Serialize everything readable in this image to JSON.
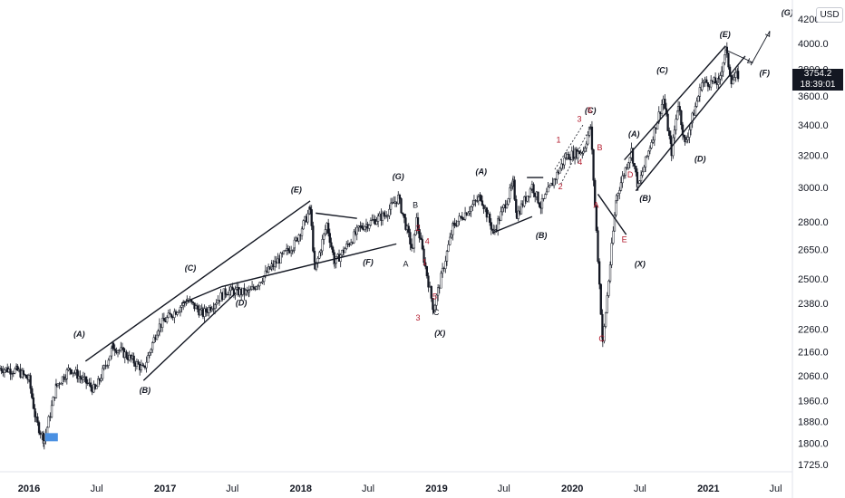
{
  "currency_label": "USD",
  "last_price_tag": {
    "price": "3754.2",
    "countdown": "18:39:01"
  },
  "chart_data": {
    "type": "candlestick",
    "scale": "log",
    "x_ticks": [
      "2016",
      "Jul",
      "2017",
      "Jul",
      "2018",
      "Jul",
      "2019",
      "Jul",
      "2020",
      "Jul",
      "2021",
      "Jul"
    ],
    "y_ticks": [
      "1725.0",
      "1800.0",
      "1880.0",
      "1960.0",
      "2060.0",
      "2160.0",
      "2260.0",
      "2380.0",
      "2500.0",
      "2650.0",
      "2800.0",
      "3000.0",
      "3200.0",
      "3400.0",
      "3600.0",
      "3800.0",
      "4000.0",
      "4200.0"
    ],
    "ylim": [
      1725,
      4200
    ],
    "xlim": [
      "2015-10-15",
      "2021-08-15"
    ],
    "grid": false,
    "price_path": [
      [
        "2015-10-15",
        2090
      ],
      [
        "2015-12-01",
        2080
      ],
      [
        "2016-01-01",
        2043
      ],
      [
        "2016-01-20",
        1880
      ],
      [
        "2016-02-11",
        1810
      ],
      [
        "2016-03-15",
        2020
      ],
      [
        "2016-04-20",
        2090
      ],
      [
        "2016-06-27",
        2000
      ],
      [
        "2016-08-15",
        2185
      ],
      [
        "2016-09-15",
        2150
      ],
      [
        "2016-11-04",
        2085
      ],
      [
        "2016-12-13",
        2270
      ],
      [
        "2017-03-01",
        2395
      ],
      [
        "2017-04-13",
        2330
      ],
      [
        "2017-06-15",
        2440
      ],
      [
        "2017-08-15",
        2430
      ],
      [
        "2017-10-15",
        2560
      ],
      [
        "2017-12-15",
        2680
      ],
      [
        "2018-01-26",
        2870
      ],
      [
        "2018-02-08",
        2540
      ],
      [
        "2018-03-12",
        2790
      ],
      [
        "2018-04-02",
        2580
      ],
      [
        "2018-06-10",
        2770
      ],
      [
        "2018-08-15",
        2840
      ],
      [
        "2018-09-20",
        2940
      ],
      [
        "2018-10-29",
        2640
      ],
      [
        "2018-11-08",
        2810
      ],
      [
        "2018-12-24",
        2350
      ],
      [
        "2019-02-15",
        2780
      ],
      [
        "2019-04-30",
        2945
      ],
      [
        "2019-06-03",
        2740
      ],
      [
        "2019-07-26",
        3020
      ],
      [
        "2019-08-05",
        2840
      ],
      [
        "2019-09-15",
        3010
      ],
      [
        "2019-10-08",
        2890
      ],
      [
        "2019-12-15",
        3190
      ],
      [
        "2020-01-31",
        3230
      ],
      [
        "2020-02-19",
        3390
      ],
      [
        "2020-03-23",
        2195
      ],
      [
        "2020-04-29",
        2950
      ],
      [
        "2020-06-08",
        3230
      ],
      [
        "2020-06-26",
        3000
      ],
      [
        "2020-09-02",
        3580
      ],
      [
        "2020-09-24",
        3220
      ],
      [
        "2020-10-12",
        3550
      ],
      [
        "2020-10-30",
        3270
      ],
      [
        "2020-12-15",
        3700
      ],
      [
        "2021-01-29",
        3700
      ],
      [
        "2021-02-16",
        3950
      ],
      [
        "2021-03-04",
        3720
      ],
      [
        "2021-03-22",
        3754.2
      ]
    ],
    "trendlines": [
      {
        "from": [
          "2016-06-01",
          2120
        ],
        "to": [
          "2018-01-26",
          2920
        ]
      },
      {
        "from": [
          "2016-11-04",
          2040
        ],
        "to": [
          "2017-07-10",
          2430
        ]
      },
      {
        "from": [
          "2017-06-01",
          2460
        ],
        "to": [
          "2018-09-15",
          2680
        ]
      },
      {
        "from": [
          "2017-02-15",
          2380
        ],
        "to": [
          "2017-06-01",
          2460
        ]
      },
      {
        "from": [
          "2020-05-20",
          3170
        ],
        "to": [
          "2021-02-16",
          3980
        ]
      },
      {
        "from": [
          "2020-06-20",
          2980
        ],
        "to": [
          "2021-04-10",
          3900
        ]
      },
      {
        "from": [
          "2019-06-01",
          2740
        ],
        "to": [
          "2019-09-15",
          2830
        ]
      },
      {
        "from": [
          "2019-09-01",
          3060
        ],
        "to": [
          "2019-10-15",
          3060
        ]
      },
      {
        "from": [
          "2018-02-10",
          2850
        ],
        "to": [
          "2018-06-01",
          2820
        ]
      },
      {
        "from": [
          "2020-03-10",
          2960
        ],
        "to": [
          "2020-05-25",
          2730
        ]
      }
    ],
    "projection_arrows": [
      {
        "from": [
          "2021-02-16",
          3950
        ],
        "to": [
          "2021-05-01",
          3850
        ]
      },
      {
        "from": [
          "2021-04-25",
          3830
        ],
        "to": [
          "2021-06-15",
          4100
        ]
      }
    ],
    "wave_labels": [
      {
        "text": "(A)",
        "date": "2016-05-15",
        "price": 2225
      },
      {
        "text": "(B)",
        "date": "2016-11-08",
        "price": 1990
      },
      {
        "text": "(C)",
        "date": "2017-03-10",
        "price": 2540
      },
      {
        "text": "(D)",
        "date": "2017-07-25",
        "price": 2370
      },
      {
        "text": "(E)",
        "date": "2017-12-20",
        "price": 2970
      },
      {
        "text": "(F)",
        "date": "2018-07-01",
        "price": 2570
      },
      {
        "text": "(G)",
        "date": "2018-09-20",
        "price": 3050
      },
      {
        "text": "(X)",
        "date": "2019-01-10",
        "price": 2230
      },
      {
        "text": "(A)",
        "date": "2019-05-01",
        "price": 3080
      },
      {
        "text": "(B)",
        "date": "2019-10-10",
        "price": 2710
      },
      {
        "text": "(C)",
        "date": "2020-02-19",
        "price": 3480
      },
      {
        "text": "(X)",
        "date": "2020-07-01",
        "price": 2560
      },
      {
        "text": "(A)",
        "date": "2020-06-15",
        "price": 3320
      },
      {
        "text": "(B)",
        "date": "2020-07-15",
        "price": 2920
      },
      {
        "text": "(C)",
        "date": "2020-08-30",
        "price": 3770
      },
      {
        "text": "(D)",
        "date": "2020-12-10",
        "price": 3160
      },
      {
        "text": "(E)",
        "date": "2021-02-15",
        "price": 4050
      },
      {
        "text": "(F)",
        "date": "2021-06-01",
        "price": 3750
      },
      {
        "text": "(G)",
        "date": "2021-08-01",
        "price": 4230
      }
    ],
    "sub_labels": [
      {
        "text": "A",
        "date": "2018-10-10",
        "price": 2560,
        "color": "black"
      },
      {
        "text": "B",
        "date": "2018-11-05",
        "price": 2880,
        "color": "black"
      },
      {
        "text": "C",
        "date": "2018-12-31",
        "price": 2325,
        "color": "black"
      },
      {
        "text": "1",
        "date": "2018-11-30",
        "price": 2570,
        "color": "red"
      },
      {
        "text": "2",
        "date": "2018-11-12",
        "price": 2750,
        "color": "red"
      },
      {
        "text": "3",
        "date": "2018-11-12",
        "price": 2300,
        "color": "red"
      },
      {
        "text": "4",
        "date": "2018-12-07",
        "price": 2680,
        "color": "red"
      },
      {
        "text": "5",
        "date": "2018-12-27",
        "price": 2400,
        "color": "red"
      },
      {
        "text": "1",
        "date": "2019-11-25",
        "price": 3280,
        "color": "red"
      },
      {
        "text": "2",
        "date": "2019-11-30",
        "price": 2990,
        "color": "red"
      },
      {
        "text": "3",
        "date": "2020-01-20",
        "price": 3420,
        "color": "red"
      },
      {
        "text": "4",
        "date": "2020-01-22",
        "price": 3140,
        "color": "red"
      },
      {
        "text": "5",
        "date": "2020-02-17",
        "price": 3480,
        "color": "red"
      },
      {
        "text": "A",
        "date": "2020-03-05",
        "price": 2880,
        "color": "red"
      },
      {
        "text": "B",
        "date": "2020-03-15",
        "price": 3230,
        "color": "red"
      },
      {
        "text": "C",
        "date": "2020-03-20",
        "price": 2205,
        "color": "red"
      },
      {
        "text": "D",
        "date": "2020-06-05",
        "price": 3060,
        "color": "red"
      },
      {
        "text": "E",
        "date": "2020-05-20",
        "price": 2690,
        "color": "red"
      }
    ],
    "marker": {
      "type": "flag",
      "date": "2016-02-11",
      "price": 1810,
      "color": "#4a90e2"
    }
  }
}
